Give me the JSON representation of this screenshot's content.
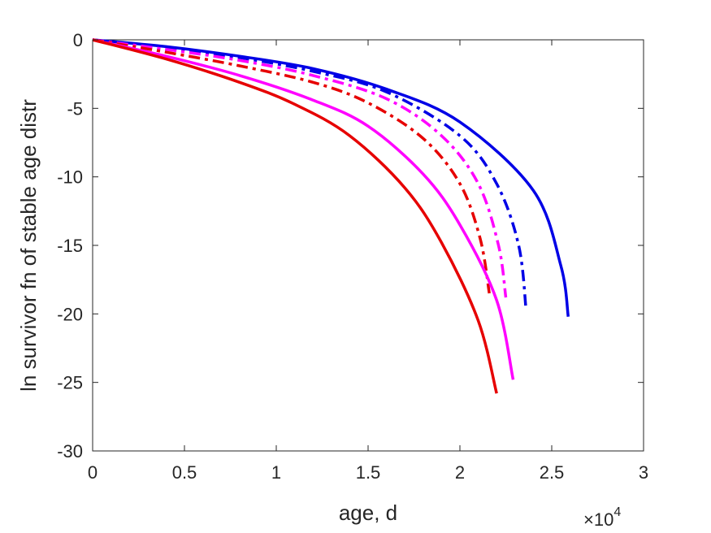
{
  "chart_data": {
    "type": "line",
    "xlabel": "age, d",
    "ylabel": "ln survivor fn of stable age distr",
    "x_exponent_label": {
      "base": "×10",
      "power": "4"
    },
    "xlim": [
      0,
      30000
    ],
    "ylim": [
      -30,
      0
    ],
    "x_ticks": [
      0,
      5000,
      10000,
      15000,
      20000,
      25000,
      30000
    ],
    "x_tick_labels": [
      "0",
      "0.5",
      "1",
      "1.5",
      "2",
      "2.5",
      "3"
    ],
    "y_ticks": [
      0,
      -5,
      -10,
      -15,
      -20,
      -25,
      -30
    ],
    "y_tick_labels": [
      "0",
      "-5",
      "-10",
      "-15",
      "-20",
      "-25",
      "-30"
    ],
    "grid": false,
    "series": [
      {
        "color": "#0000e6",
        "style": "solid",
        "x": [
          0,
          4000,
          8000,
          12000,
          16000,
          20000,
          24000,
          25500,
          25900
        ],
        "y": [
          0,
          -0.5,
          -1.2,
          -2.1,
          -3.6,
          -6.0,
          -11.0,
          -16.5,
          -20.2
        ]
      },
      {
        "color": "#0000e6",
        "style": "dashdot",
        "x": [
          0,
          4000,
          8000,
          12000,
          16000,
          20000,
          22000,
          23200,
          23600
        ],
        "y": [
          0,
          -0.6,
          -1.3,
          -2.3,
          -3.8,
          -7.0,
          -10.5,
          -15.0,
          -19.7
        ]
      },
      {
        "color": "#ff00ff",
        "style": "dashdot",
        "x": [
          0,
          4000,
          8000,
          12000,
          16000,
          19000,
          21000,
          22100,
          22500
        ],
        "y": [
          0,
          -0.7,
          -1.5,
          -2.6,
          -4.3,
          -7.0,
          -10.5,
          -15.0,
          -18.8
        ]
      },
      {
        "color": "#e60000",
        "style": "dashdot",
        "x": [
          0,
          4000,
          8000,
          12000,
          15000,
          18000,
          20000,
          21100,
          21600
        ],
        "y": [
          0,
          -0.9,
          -1.9,
          -3.1,
          -4.6,
          -7.2,
          -10.5,
          -14.5,
          -18.5
        ]
      },
      {
        "color": "#ff00ff",
        "style": "solid",
        "x": [
          0,
          4000,
          8000,
          12000,
          15000,
          18000,
          20000,
          22000,
          22900
        ],
        "y": [
          0,
          -1.2,
          -2.6,
          -4.4,
          -6.3,
          -9.8,
          -13.5,
          -19.0,
          -24.8
        ]
      },
      {
        "color": "#e60000",
        "style": "solid",
        "x": [
          0,
          4000,
          8000,
          11000,
          14000,
          17000,
          19000,
          21000,
          22000
        ],
        "y": [
          0,
          -1.4,
          -3.1,
          -4.7,
          -7.0,
          -10.8,
          -14.8,
          -20.5,
          -25.8
        ]
      }
    ]
  }
}
